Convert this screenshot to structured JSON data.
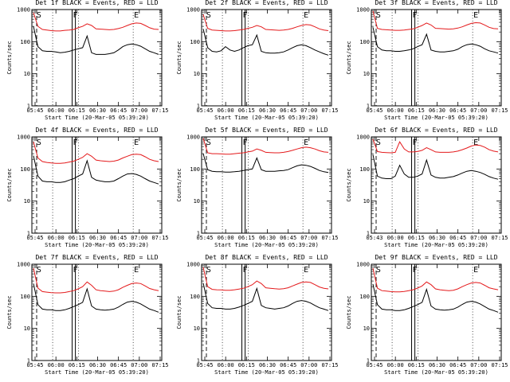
{
  "figure": {
    "background": "#ffffff",
    "events_color": "#000000",
    "lld_color": "#e41a1c"
  },
  "chart_data": [
    {
      "type": "line",
      "title": "Det 1f BLACK = Events, RED = LLD",
      "xlabel": "Start Time (20-Mar-05 05:39:20)",
      "ylabel": "Counts/sec",
      "x_tick_labels": [
        "05:45",
        "06:00",
        "06:15",
        "06:30",
        "06:45",
        "07:00",
        "07:15"
      ],
      "y_tick_labels": [
        "1",
        "10",
        "100",
        "1000"
      ],
      "ylim": [
        1,
        1000
      ],
      "yscale": "log",
      "markers": [
        "S",
        "F",
        "E"
      ],
      "series": [
        {
          "name": "LLD",
          "color": "#e41a1c",
          "values": [
            800,
            300,
            240,
            230,
            220,
            215,
            215,
            225,
            230,
            240,
            270,
            300,
            360,
            320,
            250,
            245,
            240,
            235,
            240,
            255,
            280,
            320,
            360,
            380,
            370,
            320,
            270,
            245,
            240
          ]
        },
        {
          "name": "Events",
          "color": "#000000",
          "values": [
            300,
            70,
            52,
            50,
            50,
            48,
            45,
            47,
            50,
            55,
            60,
            65,
            150,
            45,
            40,
            40,
            40,
            42,
            45,
            55,
            70,
            80,
            85,
            80,
            72,
            60,
            50,
            45,
            40
          ]
        }
      ]
    },
    {
      "type": "line",
      "title": "Det 2f BLACK = Events, RED = LLD",
      "xlabel": "Start Time (20-Mar-05 05:39:20)",
      "ylabel": "Counts/sec",
      "x_tick_labels": [
        "05:45",
        "06:00",
        "06:15",
        "06:30",
        "06:45",
        "07:00",
        "07:15"
      ],
      "y_tick_labels": [
        "1",
        "10",
        "100",
        "1000"
      ],
      "ylim": [
        1,
        1000
      ],
      "yscale": "log",
      "markers": [
        "S",
        "F",
        "E"
      ],
      "series": [
        {
          "name": "LLD",
          "color": "#e41a1c",
          "values": [
            700,
            260,
            230,
            225,
            220,
            215,
            215,
            220,
            230,
            240,
            260,
            280,
            320,
            290,
            240,
            235,
            230,
            225,
            230,
            240,
            260,
            290,
            320,
            340,
            330,
            290,
            250,
            230,
            220
          ]
        },
        {
          "name": "Events",
          "color": "#000000",
          "values": [
            250,
            65,
            50,
            48,
            52,
            70,
            55,
            50,
            55,
            65,
            75,
            80,
            160,
            50,
            45,
            44,
            44,
            45,
            48,
            55,
            65,
            75,
            80,
            75,
            65,
            55,
            48,
            42,
            38
          ]
        }
      ]
    },
    {
      "type": "line",
      "title": "Det 3f BLACK = Events, RED = LLD",
      "xlabel": "Start Time (20-Mar-05 05:39:20)",
      "ylabel": "Counts/sec",
      "x_tick_labels": [
        "05:45",
        "06:00",
        "06:15",
        "06:30",
        "06:45",
        "07:00",
        "07:15"
      ],
      "y_tick_labels": [
        "1",
        "10",
        "100",
        "1000"
      ],
      "ylim": [
        1,
        1000
      ],
      "yscale": "log",
      "markers": [
        "S",
        "F",
        "E"
      ],
      "series": [
        {
          "name": "LLD",
          "color": "#e41a1c",
          "values": [
            900,
            260,
            240,
            235,
            230,
            225,
            225,
            230,
            240,
            250,
            280,
            320,
            380,
            330,
            260,
            255,
            250,
            245,
            250,
            265,
            290,
            330,
            370,
            390,
            380,
            330,
            280,
            255,
            250
          ]
        },
        {
          "name": "Events",
          "color": "#000000",
          "values": [
            280,
            70,
            55,
            52,
            52,
            50,
            50,
            52,
            55,
            60,
            70,
            80,
            170,
            55,
            50,
            48,
            48,
            50,
            52,
            58,
            70,
            80,
            85,
            80,
            72,
            60,
            52,
            48,
            44
          ]
        }
      ]
    },
    {
      "type": "line",
      "title": "Det 4f BLACK = Events, RED = LLD",
      "xlabel": "Start Time (20-Mar-05 05:39:20)",
      "ylabel": "Counts/sec",
      "x_tick_labels": [
        "05:45",
        "06:00",
        "06:15",
        "06:30",
        "06:45",
        "07:00",
        "07:15"
      ],
      "y_tick_labels": [
        "1",
        "10",
        "100",
        "1000"
      ],
      "ylim": [
        1,
        1000
      ],
      "yscale": "log",
      "markers": [
        "S",
        "F",
        "E"
      ],
      "series": [
        {
          "name": "LLD",
          "color": "#e41a1c",
          "values": [
            700,
            220,
            170,
            160,
            155,
            150,
            150,
            155,
            165,
            175,
            200,
            230,
            300,
            250,
            190,
            180,
            175,
            170,
            175,
            190,
            220,
            250,
            280,
            290,
            280,
            240,
            200,
            180,
            170
          ]
        },
        {
          "name": "Events",
          "color": "#000000",
          "values": [
            260,
            60,
            42,
            40,
            40,
            38,
            38,
            40,
            45,
            50,
            60,
            70,
            180,
            55,
            45,
            42,
            40,
            40,
            42,
            50,
            60,
            70,
            72,
            68,
            60,
            50,
            42,
            38,
            34
          ]
        }
      ]
    },
    {
      "type": "line",
      "title": "Det 5f BLACK = Events, RED = LLD",
      "xlabel": "Start Time (20-Mar-05 05:39:20)",
      "ylabel": "Counts/sec",
      "x_tick_labels": [
        "05:45",
        "06:00",
        "06:15",
        "06:30",
        "06:45",
        "07:00",
        "07:15"
      ],
      "y_tick_labels": [
        "1",
        "10",
        "100",
        "1000"
      ],
      "ylim": [
        1,
        1000
      ],
      "yscale": "log",
      "markers": [
        "S",
        "F",
        "E"
      ],
      "series": [
        {
          "name": "LLD",
          "color": "#e41a1c",
          "values": [
            900,
            320,
            300,
            300,
            295,
            290,
            290,
            300,
            310,
            320,
            340,
            360,
            420,
            380,
            330,
            325,
            320,
            320,
            330,
            350,
            380,
            420,
            460,
            480,
            460,
            420,
            370,
            340,
            330
          ]
        },
        {
          "name": "Events",
          "color": "#000000",
          "values": [
            300,
            95,
            85,
            82,
            82,
            80,
            80,
            82,
            85,
            90,
            95,
            100,
            220,
            95,
            85,
            85,
            85,
            88,
            90,
            95,
            110,
            125,
            135,
            130,
            120,
            105,
            90,
            82,
            78
          ]
        }
      ]
    },
    {
      "type": "line",
      "title": "Det 6f BLACK = Events, RED = LLD",
      "xlabel": "Start Time (20-Mar-05 05:39:20)",
      "ylabel": "Counts/sec",
      "x_tick_labels": [
        "05:43",
        "06:00",
        "06:15",
        "06:30",
        "06:45",
        "07:00",
        "07:15"
      ],
      "y_tick_labels": [
        "1",
        "10",
        "100",
        "1000"
      ],
      "ylim": [
        1,
        1000
      ],
      "yscale": "log",
      "markers": [
        "S",
        "F",
        "E"
      ],
      "series": [
        {
          "name": "LLD",
          "color": "#e41a1c",
          "values": [
            850,
            350,
            330,
            325,
            320,
            330,
            700,
            420,
            340,
            340,
            350,
            380,
            460,
            400,
            340,
            330,
            330,
            330,
            340,
            360,
            400,
            450,
            520,
            560,
            540,
            480,
            400,
            360,
            340
          ]
        },
        {
          "name": "Events",
          "color": "#000000",
          "values": [
            280,
            60,
            52,
            50,
            50,
            60,
            130,
            70,
            55,
            55,
            60,
            70,
            190,
            65,
            55,
            52,
            52,
            55,
            58,
            65,
            75,
            85,
            90,
            85,
            78,
            68,
            58,
            52,
            48
          ]
        }
      ]
    },
    {
      "type": "line",
      "title": "Det 7f BLACK = Events, RED = LLD",
      "xlabel": "Start Time (20-Mar-05 05:39:20)",
      "ylabel": "Counts/sec",
      "x_tick_labels": [
        "05:45",
        "06:00",
        "06:15",
        "06:30",
        "06:45",
        "07:00",
        "07:15"
      ],
      "y_tick_labels": [
        "1",
        "10",
        "100",
        "1000"
      ],
      "ylim": [
        1,
        1000
      ],
      "yscale": "log",
      "markers": [
        "S",
        "F",
        "E"
      ],
      "series": [
        {
          "name": "LLD",
          "color": "#e41a1c",
          "values": [
            750,
            180,
            140,
            135,
            130,
            128,
            128,
            132,
            140,
            150,
            170,
            200,
            280,
            220,
            160,
            150,
            145,
            140,
            145,
            160,
            190,
            220,
            250,
            260,
            250,
            210,
            175,
            160,
            150
          ]
        },
        {
          "name": "Events",
          "color": "#000000",
          "values": [
            250,
            55,
            40,
            38,
            38,
            36,
            36,
            38,
            42,
            48,
            55,
            65,
            170,
            50,
            40,
            38,
            37,
            38,
            40,
            46,
            56,
            66,
            70,
            66,
            58,
            48,
            40,
            36,
            32
          ]
        }
      ]
    },
    {
      "type": "line",
      "title": "Det 8f BLACK = Events, RED = LLD",
      "xlabel": "Start Time (20-Mar-05 05:39:20)",
      "ylabel": "Counts/sec",
      "x_tick_labels": [
        "05:45",
        "06:00",
        "06:15",
        "06:30",
        "06:45",
        "07:00",
        "07:15"
      ],
      "y_tick_labels": [
        "1",
        "10",
        "100",
        "1000"
      ],
      "ylim": [
        1,
        1000
      ],
      "yscale": "log",
      "markers": [
        "S",
        "F",
        "E"
      ],
      "series": [
        {
          "name": "LLD",
          "color": "#e41a1c",
          "values": [
            800,
            200,
            165,
            160,
            158,
            155,
            155,
            160,
            168,
            178,
            200,
            230,
            300,
            250,
            185,
            178,
            172,
            168,
            172,
            185,
            210,
            240,
            270,
            280,
            270,
            230,
            195,
            178,
            170
          ]
        },
        {
          "name": "Events",
          "color": "#000000",
          "values": [
            260,
            60,
            44,
            42,
            42,
            40,
            40,
            42,
            46,
            52,
            60,
            70,
            175,
            52,
            44,
            42,
            40,
            42,
            44,
            50,
            60,
            70,
            74,
            70,
            62,
            52,
            44,
            40,
            36
          ]
        }
      ]
    },
    {
      "type": "line",
      "title": "Det 9f BLACK = Events, RED = LLD",
      "xlabel": "Start Time (20-Mar-05 05:39:20)",
      "ylabel": "Counts/sec",
      "x_tick_labels": [
        "05:45",
        "06:00",
        "06:15",
        "06:30",
        "06:45",
        "07:00",
        "07:15"
      ],
      "y_tick_labels": [
        "1",
        "10",
        "100",
        "1000"
      ],
      "ylim": [
        1,
        1000
      ],
      "yscale": "log",
      "markers": [
        "S",
        "F",
        "E"
      ],
      "series": [
        {
          "name": "LLD",
          "color": "#e41a1c",
          "values": [
            750,
            180,
            150,
            145,
            140,
            138,
            138,
            142,
            150,
            160,
            180,
            210,
            280,
            230,
            170,
            160,
            155,
            150,
            155,
            170,
            200,
            230,
            260,
            270,
            260,
            220,
            185,
            170,
            160
          ]
        },
        {
          "name": "Events",
          "color": "#000000",
          "values": [
            240,
            55,
            40,
            38,
            38,
            36,
            36,
            38,
            42,
            48,
            55,
            65,
            165,
            50,
            40,
            38,
            37,
            38,
            40,
            46,
            56,
            66,
            70,
            66,
            58,
            48,
            40,
            36,
            32
          ]
        }
      ]
    }
  ]
}
